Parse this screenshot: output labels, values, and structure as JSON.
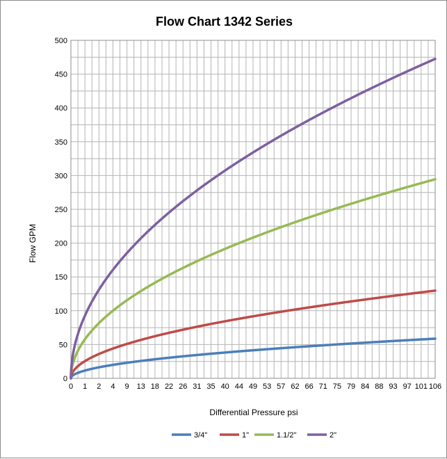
{
  "chart_data": {
    "type": "line",
    "title": "Flow Chart 1342 Series",
    "xlabel": "Differential Pressure psi",
    "ylabel": "Flow GPM",
    "xlim": [
      0,
      106
    ],
    "ylim": [
      0,
      500
    ],
    "yticks": [
      0,
      50,
      100,
      150,
      200,
      250,
      300,
      350,
      400,
      450,
      500
    ],
    "xtick_labels": [
      "0",
      "1",
      "2",
      "4",
      "9",
      "13",
      "18",
      "22",
      "26",
      "31",
      "35",
      "40",
      "44",
      "49",
      "53",
      "57",
      "62",
      "66",
      "71",
      "75",
      "79",
      "84",
      "88",
      "93",
      "97",
      "101",
      "106"
    ],
    "grid": true,
    "legend": "bottom",
    "series": [
      {
        "name": "3/4\"",
        "color": "#4a7ebb",
        "coef": 5.7
      },
      {
        "name": "1\"",
        "color": "#be4b48",
        "coef": 12.6
      },
      {
        "name": "1.1/2\"",
        "color": "#98b954",
        "coef": 28.6
      },
      {
        "name": "2\"",
        "color": "#7d60a0",
        "coef": 45.9
      }
    ]
  }
}
